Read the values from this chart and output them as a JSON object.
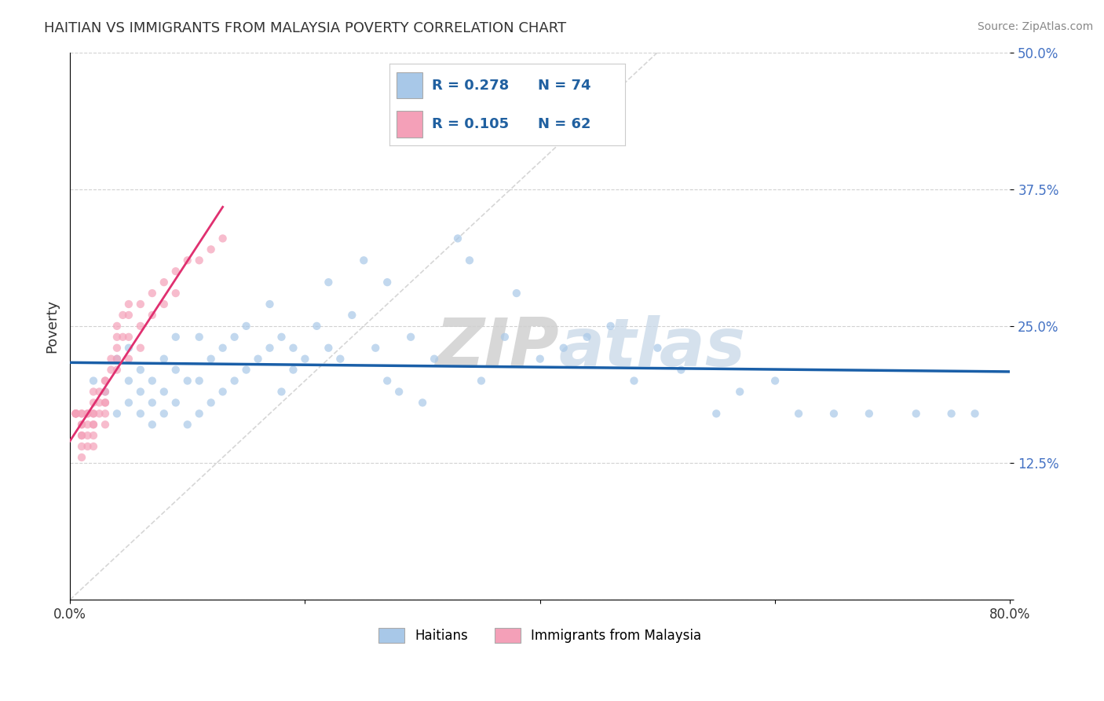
{
  "title": "HAITIAN VS IMMIGRANTS FROM MALAYSIA POVERTY CORRELATION CHART",
  "source": "Source: ZipAtlas.com",
  "ylabel": "Poverty",
  "watermark_zip": "ZIP",
  "watermark_atlas": "atlas",
  "xlim": [
    0.0,
    0.8
  ],
  "ylim": [
    0.0,
    0.5
  ],
  "xticks": [
    0.0,
    0.2,
    0.4,
    0.6,
    0.8
  ],
  "xticklabels": [
    "0.0%",
    "",
    "",
    "",
    "80.0%"
  ],
  "yticks": [
    0.0,
    0.125,
    0.25,
    0.375,
    0.5
  ],
  "yticklabels": [
    "",
    "12.5%",
    "25.0%",
    "37.5%",
    "50.0%"
  ],
  "legend_blue_label": "Haitians",
  "legend_pink_label": "Immigrants from Malaysia",
  "r_blue": "0.278",
  "n_blue": "74",
  "r_pink": "0.105",
  "n_pink": "62",
  "blue_color": "#a8c8e8",
  "pink_color": "#f4a0b8",
  "blue_line_color": "#1a5fa8",
  "pink_line_color": "#e03070",
  "diag_line_color": "#cccccc",
  "scatter_alpha": 0.7,
  "scatter_size": 55,
  "haitians_x": [
    0.02,
    0.03,
    0.04,
    0.04,
    0.05,
    0.05,
    0.05,
    0.06,
    0.06,
    0.06,
    0.07,
    0.07,
    0.07,
    0.08,
    0.08,
    0.08,
    0.09,
    0.09,
    0.09,
    0.1,
    0.1,
    0.11,
    0.11,
    0.11,
    0.12,
    0.12,
    0.13,
    0.13,
    0.14,
    0.14,
    0.15,
    0.15,
    0.16,
    0.17,
    0.17,
    0.18,
    0.18,
    0.19,
    0.19,
    0.2,
    0.21,
    0.22,
    0.22,
    0.23,
    0.24,
    0.25,
    0.26,
    0.27,
    0.27,
    0.28,
    0.29,
    0.3,
    0.31,
    0.33,
    0.34,
    0.35,
    0.37,
    0.38,
    0.4,
    0.42,
    0.44,
    0.46,
    0.48,
    0.5,
    0.52,
    0.55,
    0.57,
    0.6,
    0.62,
    0.65,
    0.68,
    0.72,
    0.75,
    0.77
  ],
  "haitians_y": [
    0.2,
    0.19,
    0.22,
    0.17,
    0.18,
    0.2,
    0.23,
    0.17,
    0.19,
    0.21,
    0.16,
    0.18,
    0.2,
    0.17,
    0.19,
    0.22,
    0.18,
    0.21,
    0.24,
    0.16,
    0.2,
    0.17,
    0.2,
    0.24,
    0.18,
    0.22,
    0.19,
    0.23,
    0.2,
    0.24,
    0.21,
    0.25,
    0.22,
    0.23,
    0.27,
    0.19,
    0.24,
    0.21,
    0.23,
    0.22,
    0.25,
    0.29,
    0.23,
    0.22,
    0.26,
    0.31,
    0.23,
    0.29,
    0.2,
    0.19,
    0.24,
    0.18,
    0.22,
    0.33,
    0.31,
    0.2,
    0.24,
    0.28,
    0.22,
    0.23,
    0.24,
    0.25,
    0.2,
    0.23,
    0.21,
    0.17,
    0.19,
    0.2,
    0.17,
    0.17,
    0.17,
    0.17,
    0.17,
    0.17
  ],
  "malaysia_x": [
    0.005,
    0.005,
    0.005,
    0.005,
    0.005,
    0.01,
    0.01,
    0.01,
    0.01,
    0.01,
    0.01,
    0.01,
    0.01,
    0.015,
    0.015,
    0.015,
    0.015,
    0.015,
    0.02,
    0.02,
    0.02,
    0.02,
    0.02,
    0.02,
    0.02,
    0.02,
    0.025,
    0.025,
    0.025,
    0.03,
    0.03,
    0.03,
    0.03,
    0.03,
    0.03,
    0.03,
    0.035,
    0.035,
    0.04,
    0.04,
    0.04,
    0.04,
    0.04,
    0.045,
    0.045,
    0.05,
    0.05,
    0.05,
    0.05,
    0.06,
    0.06,
    0.06,
    0.07,
    0.07,
    0.08,
    0.08,
    0.09,
    0.09,
    0.1,
    0.11,
    0.12,
    0.13
  ],
  "malaysia_y": [
    0.17,
    0.17,
    0.17,
    0.17,
    0.17,
    0.17,
    0.17,
    0.16,
    0.16,
    0.15,
    0.15,
    0.14,
    0.13,
    0.17,
    0.17,
    0.16,
    0.15,
    0.14,
    0.19,
    0.18,
    0.17,
    0.17,
    0.16,
    0.16,
    0.15,
    0.14,
    0.19,
    0.18,
    0.17,
    0.2,
    0.2,
    0.19,
    0.18,
    0.18,
    0.17,
    0.16,
    0.22,
    0.21,
    0.25,
    0.24,
    0.23,
    0.22,
    0.21,
    0.26,
    0.24,
    0.27,
    0.26,
    0.24,
    0.22,
    0.27,
    0.25,
    0.23,
    0.28,
    0.26,
    0.29,
    0.27,
    0.3,
    0.28,
    0.31,
    0.31,
    0.32,
    0.33
  ],
  "background_color": "#ffffff",
  "grid_color": "#cccccc"
}
